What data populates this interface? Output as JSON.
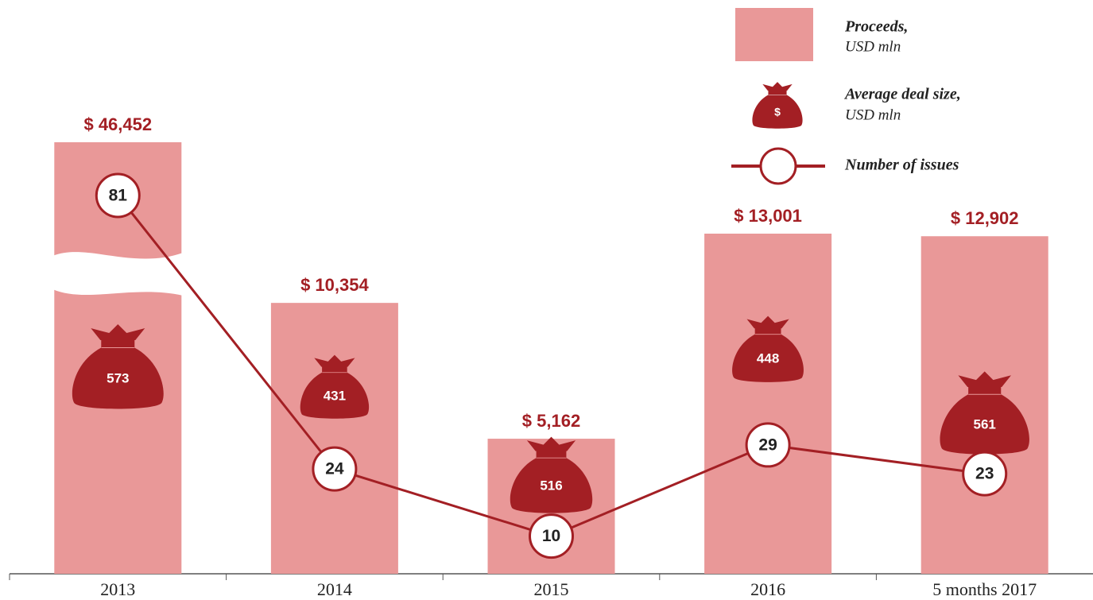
{
  "chart_data": {
    "type": "bar-bag-line",
    "categories": [
      "2013",
      "2014",
      "2015",
      "2016",
      "5 months 2017"
    ],
    "axis_break": true,
    "series": [
      {
        "name": "Proceeds,",
        "unit": "USD mln",
        "type": "bar",
        "color": "#e99898",
        "values": [
          46452,
          10354,
          5162,
          13001,
          12902
        ],
        "value_labels": [
          "$ 46,452",
          "$ 10,354",
          "$ 5,162",
          "$ 13,001",
          "$ 12,902"
        ]
      },
      {
        "name": "Average deal size,",
        "unit": "USD mln",
        "type": "bag",
        "color": "#a31f24",
        "icon_label": "$",
        "values": [
          573,
          431,
          516,
          448,
          561
        ]
      },
      {
        "name": "Number of issues",
        "type": "line",
        "color": "#a31f24",
        "values": [
          81,
          24,
          10,
          29,
          23
        ]
      }
    ]
  }
}
